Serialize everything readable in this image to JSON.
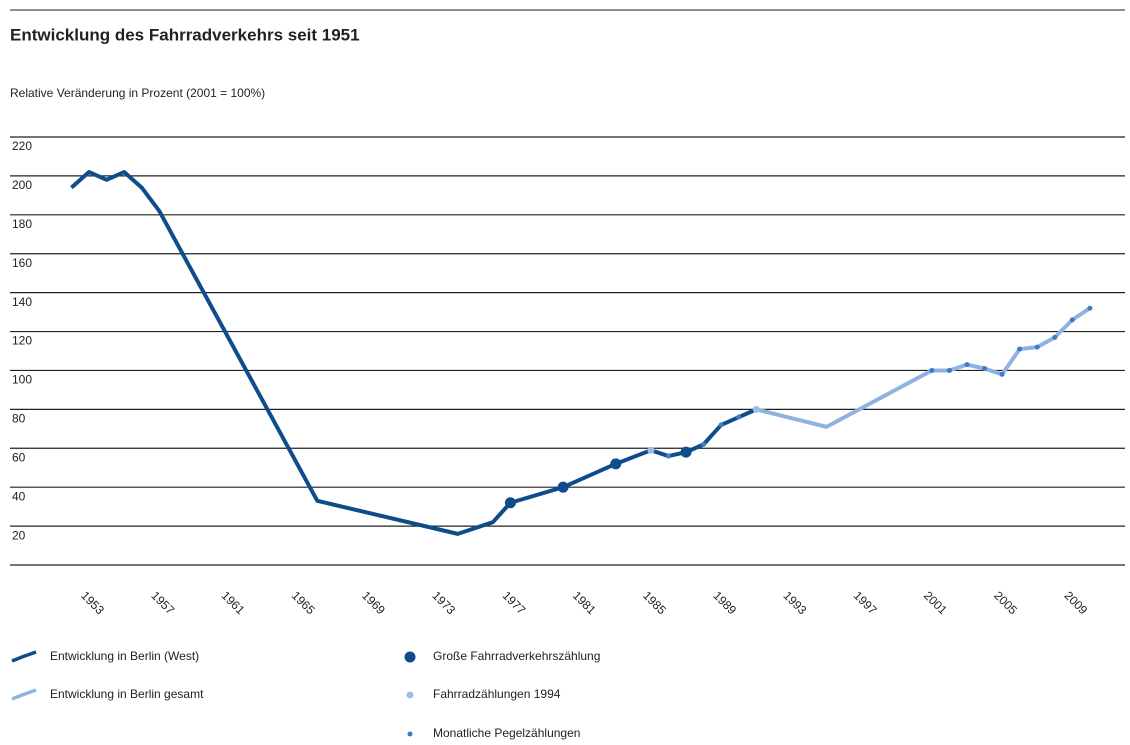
{
  "chart_data": {
    "type": "line",
    "title": "Entwicklung des Fahrradverkehrs seit 1951",
    "subtitle": "Relative Veränderung in Prozent (2001 = 100%)",
    "xlim": [
      1947.5,
      2011
    ],
    "xticks": [
      1953,
      1957,
      1961,
      1965,
      1969,
      1973,
      1977,
      1981,
      1985,
      1989,
      1993,
      1997,
      2001,
      2005,
      2009
    ],
    "ylim": [
      0,
      220
    ],
    "yticks": [
      20,
      40,
      60,
      80,
      100,
      120,
      140,
      160,
      180,
      200,
      220
    ],
    "grid": true,
    "series": [
      {
        "name": "Entwicklung in Berlin (West)",
        "color": "#0f4c8c",
        "style": "line",
        "x": [
          1951,
          1952,
          1953,
          1954,
          1955,
          1956,
          1965,
          1973,
          1975,
          1976,
          1979,
          1982,
          1984,
          1985,
          1986,
          1987,
          1988,
          1989,
          1990
        ],
        "values": [
          194,
          202,
          198,
          202,
          194,
          182,
          33,
          16,
          22,
          32,
          40,
          52,
          59,
          56,
          58,
          62,
          72,
          76,
          80
        ]
      },
      {
        "name": "Entwicklung in Berlin gesamt",
        "color": "#8fb3e0",
        "style": "line",
        "x": [
          1990,
          1994,
          2000,
          2001,
          2002,
          2003,
          2004,
          2005,
          2006,
          2007,
          2008,
          2009
        ],
        "values": [
          80,
          71,
          100,
          100,
          103,
          101,
          98,
          111,
          112,
          117,
          126,
          132
        ]
      },
      {
        "name": "Große Fahrradverkehrszählung",
        "color": "#0f4c8c",
        "style": "large-dot",
        "x": [
          1976,
          1979,
          1982,
          1986
        ],
        "values": [
          32,
          40,
          52,
          58
        ]
      },
      {
        "name": "Fahrradzählungen 1994",
        "color": "#9cbde6",
        "style": "dot",
        "x": [
          1984,
          1990
        ],
        "values": [
          59,
          80
        ]
      },
      {
        "name": "Monatliche Pegelzählungen",
        "color": "#3e7cc4",
        "style": "small-dot",
        "x": [
          1985,
          1987,
          1988,
          1989,
          2000,
          2001,
          2002,
          2003,
          2004,
          2005,
          2006,
          2007,
          2008,
          2009
        ],
        "values": [
          56,
          62,
          72,
          76,
          100,
          100,
          103,
          101,
          98,
          111,
          112,
          117,
          126,
          132
        ]
      }
    ]
  }
}
